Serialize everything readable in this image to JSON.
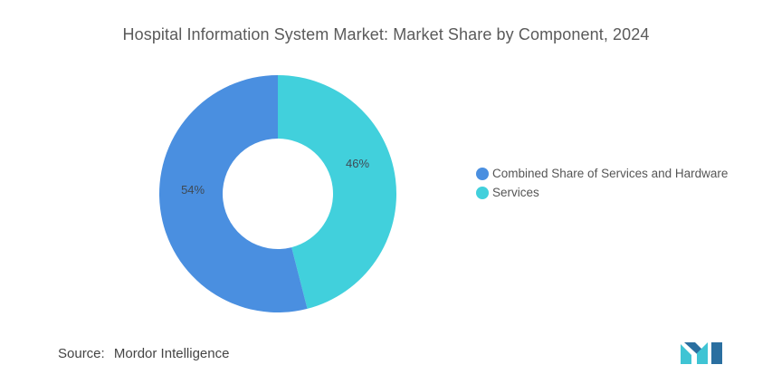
{
  "title": "Hospital Information System Market: Market Share by Component, 2024",
  "source": {
    "label": "Source:",
    "value": "Mordor Intelligence"
  },
  "colors": {
    "series_a": "#4a8fe0",
    "series_b": "#41d0dc",
    "logo_dark": "#2a6fa0",
    "logo_light": "#3fc4d4"
  },
  "chart_data": {
    "type": "pie",
    "subtype": "donut",
    "title": "Hospital Information System Market: Market Share by Component, 2024",
    "slices": [
      {
        "name": "Services",
        "value": 46,
        "label": "46%",
        "color": "#41d0dc"
      },
      {
        "name": "Combined Share of Services and Hardware",
        "value": 54,
        "label": "54%",
        "color": "#4a8fe0"
      }
    ],
    "legend_order": [
      "Combined Share of Services and Hardware",
      "Services"
    ],
    "legend": "right",
    "start_angle": "top",
    "direction": "clockwise"
  },
  "logo_icon": "mordor-intelligence-logo-icon"
}
